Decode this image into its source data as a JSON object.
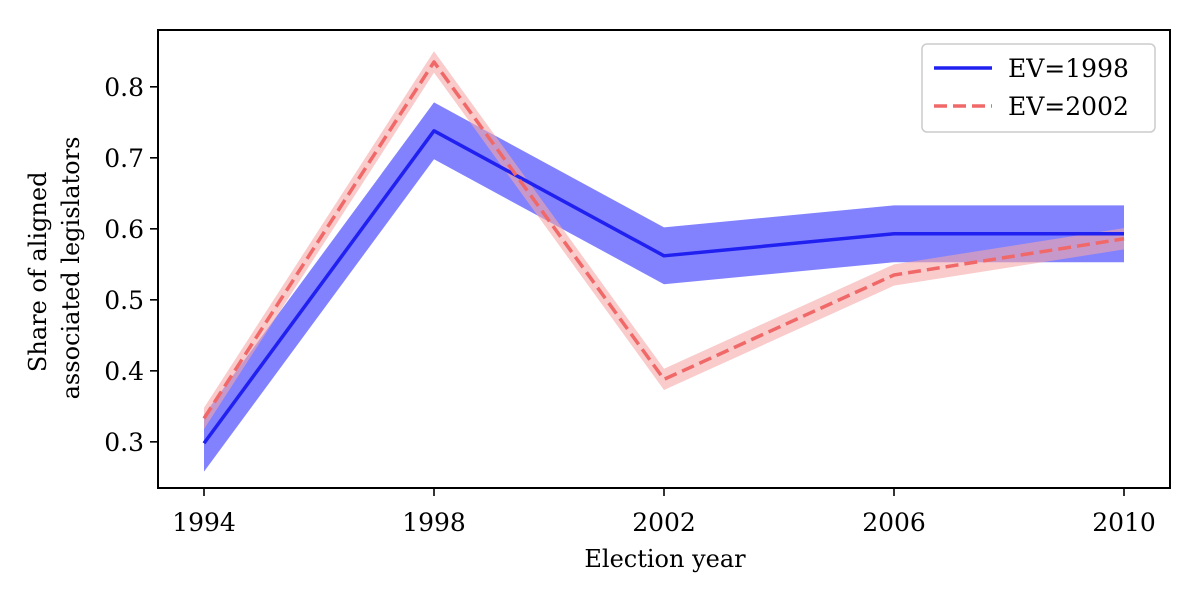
{
  "chart_data": {
    "type": "line",
    "xlabel": "Election year",
    "ylabel_lines": [
      "Share of aligned",
      "associated legislators"
    ],
    "x": [
      1994,
      1998,
      2002,
      2006,
      2010
    ],
    "x_ticks": [
      "1994",
      "1998",
      "2002",
      "2006",
      "2010"
    ],
    "y_ticks": [
      "0.3",
      "0.4",
      "0.5",
      "0.6",
      "0.7",
      "0.8"
    ],
    "y_tick_values": [
      0.3,
      0.4,
      0.5,
      0.6,
      0.7,
      0.8
    ],
    "xlim": [
      1993.2,
      2010.8
    ],
    "ylim": [
      0.235,
      0.88
    ],
    "grid": false,
    "legend_position": "top-right",
    "series": [
      {
        "name": "EV=1998",
        "color": "#2020f0",
        "band_color": "#7b7bff",
        "line_style": "solid",
        "values": [
          0.298,
          0.738,
          0.562,
          0.593,
          0.593
        ],
        "lower": [
          0.258,
          0.698,
          0.522,
          0.553,
          0.553
        ],
        "upper": [
          0.338,
          0.778,
          0.602,
          0.633,
          0.633
        ]
      },
      {
        "name": "EV=2002",
        "color": "#f06868",
        "band_color": "#f5a9a9",
        "line_style": "dashed",
        "values": [
          0.333,
          0.835,
          0.388,
          0.535,
          0.586
        ],
        "lower": [
          0.318,
          0.82,
          0.373,
          0.52,
          0.571
        ],
        "upper": [
          0.348,
          0.85,
          0.403,
          0.55,
          0.601
        ]
      }
    ]
  }
}
